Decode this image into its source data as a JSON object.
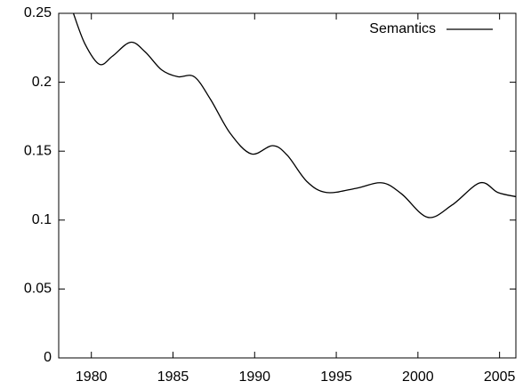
{
  "chart_data": {
    "type": "line",
    "x": [
      1978.9,
      1979.6,
      1980.5,
      1981.3,
      1982.4,
      1983.3,
      1984.3,
      1985.3,
      1986.3,
      1987.3,
      1988.5,
      1989.8,
      1991.1,
      1992.0,
      1993.2,
      1994.4,
      1996.2,
      1997.8,
      1999.0,
      2000.6,
      2002.1,
      2003.8,
      2004.9,
      2006.0
    ],
    "series": [
      {
        "name": "Semantics",
        "color": "#000000",
        "values": [
          0.25,
          0.228,
          0.213,
          0.219,
          0.229,
          0.222,
          0.209,
          0.204,
          0.204,
          0.1875,
          0.163,
          0.148,
          0.154,
          0.147,
          0.128,
          0.12,
          0.123,
          0.127,
          0.119,
          0.102,
          0.111,
          0.127,
          0.12,
          0.117
        ]
      }
    ],
    "xlim": [
      1978,
      2006
    ],
    "xticks": [
      1980,
      1985,
      1990,
      1995,
      2000,
      2005
    ],
    "ylim": [
      0,
      0.25
    ],
    "yticks": [
      0,
      0.05,
      0.1,
      0.15,
      0.2,
      0.25
    ],
    "legend": "top-right",
    "grid": false
  }
}
